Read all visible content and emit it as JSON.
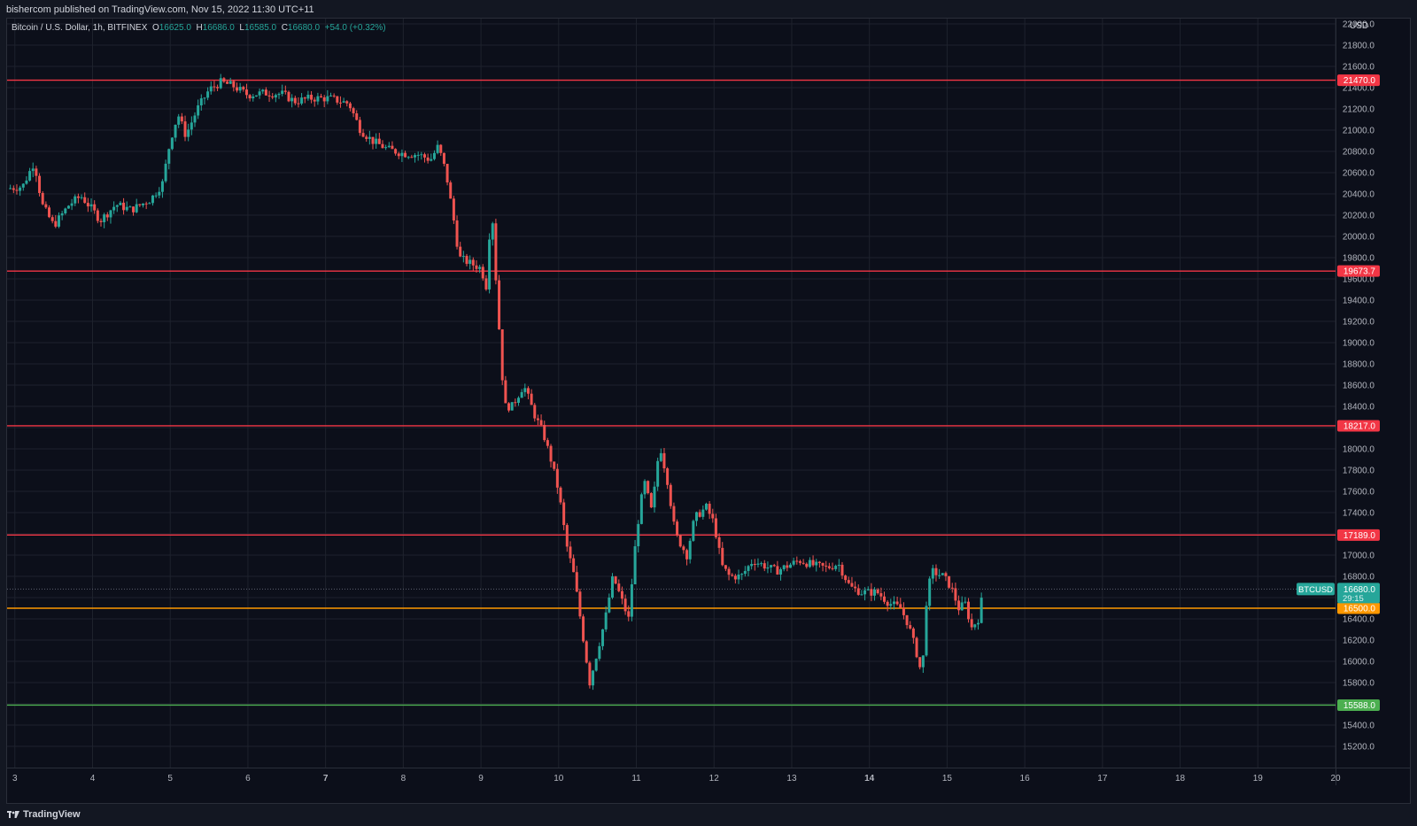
{
  "header": {
    "published_by": "bishercom published on TradingView.com, Nov 15, 2022 11:30 UTC+11"
  },
  "legend": {
    "symbol": "Bitcoin / U.S. Dollar, 1h, BITFINEX",
    "open_label": "O",
    "open_value": "16625.0",
    "high_label": "H",
    "high_value": "16686.0",
    "low_label": "L",
    "low_value": "16585.0",
    "close_label": "C",
    "close_value": "16680.0",
    "change": "+54.0 (+0.32%)"
  },
  "footer": {
    "brand": "TradingView"
  },
  "colors": {
    "background": "#0c0f1a",
    "up": "#26a69a",
    "down": "#ef5350",
    "resistance": "#f23645",
    "support_orange": "#ff9800",
    "support_green": "#4caf50",
    "grid": "#1e222d"
  },
  "chart_data": {
    "type": "candlestick",
    "currency": "USD",
    "x_ticks": [
      "3",
      "4",
      "5",
      "6",
      "7",
      "8",
      "9",
      "10",
      "11",
      "12",
      "13",
      "14",
      "15",
      "16",
      "17",
      "18",
      "19",
      "20"
    ],
    "bold_x_ticks": [
      "7",
      "14"
    ],
    "y_ticks": [
      "22000.0",
      "21800.0",
      "21600.0",
      "21400.0",
      "21200.0",
      "21000.0",
      "20800.0",
      "20600.0",
      "20400.0",
      "20200.0",
      "20000.0",
      "19800.0",
      "19600.0",
      "19400.0",
      "19200.0",
      "19000.0",
      "18800.0",
      "18600.0",
      "18400.0",
      "18200.0",
      "18000.0",
      "17800.0",
      "17600.0",
      "17400.0",
      "17200.0",
      "17000.0",
      "16800.0",
      "16600.0",
      "16400.0",
      "16200.0",
      "16000.0",
      "15800.0",
      "15600.0",
      "15400.0",
      "15200.0"
    ],
    "ylim": [
      15000,
      22050
    ],
    "xlim": [
      2.9,
      20.0
    ],
    "horizontal_lines": [
      {
        "value": 21470.0,
        "label": "21470.0",
        "color": "#f23645"
      },
      {
        "value": 19673.7,
        "label": "19673.7",
        "color": "#f23645"
      },
      {
        "value": 18217.0,
        "label": "18217.0",
        "color": "#f23645"
      },
      {
        "value": 17189.0,
        "label": "17189.0",
        "color": "#f23645"
      },
      {
        "value": 16500.0,
        "label": "16500.0",
        "color": "#ff9800"
      },
      {
        "value": 15588.0,
        "label": "15588.0",
        "color": "#4caf50"
      }
    ],
    "last_price": {
      "symbol": "BTCUSD",
      "value": "16680.0",
      "countdown": "29:15",
      "numeric": 16680
    },
    "price_path": [
      [
        2.9,
        20450
      ],
      [
        3.1,
        20470
      ],
      [
        3.25,
        20700
      ],
      [
        3.35,
        20300
      ],
      [
        3.5,
        20100
      ],
      [
        3.7,
        20300
      ],
      [
        3.85,
        20380
      ],
      [
        4.0,
        20250
      ],
      [
        4.1,
        20150
      ],
      [
        4.3,
        20300
      ],
      [
        4.5,
        20250
      ],
      [
        4.75,
        20350
      ],
      [
        4.9,
        20500
      ],
      [
        5.0,
        20900
      ],
      [
        5.1,
        21150
      ],
      [
        5.2,
        20950
      ],
      [
        5.35,
        21200
      ],
      [
        5.5,
        21380
      ],
      [
        5.65,
        21450
      ],
      [
        5.8,
        21420
      ],
      [
        6.0,
        21330
      ],
      [
        6.2,
        21350
      ],
      [
        6.45,
        21340
      ],
      [
        6.6,
        21270
      ],
      [
        6.8,
        21300
      ],
      [
        7.05,
        21300
      ],
      [
        7.3,
        21250
      ],
      [
        7.45,
        21000
      ],
      [
        7.6,
        20900
      ],
      [
        7.8,
        20820
      ],
      [
        8.0,
        20780
      ],
      [
        8.2,
        20770
      ],
      [
        8.35,
        20720
      ],
      [
        8.45,
        20850
      ],
      [
        8.55,
        20600
      ],
      [
        8.65,
        20150
      ],
      [
        8.72,
        19800
      ],
      [
        8.85,
        19750
      ],
      [
        9.0,
        19700
      ],
      [
        9.08,
        19500
      ],
      [
        9.13,
        20400
      ],
      [
        9.2,
        19500
      ],
      [
        9.3,
        18400
      ],
      [
        9.4,
        18400
      ],
      [
        9.55,
        18600
      ],
      [
        9.7,
        18300
      ],
      [
        9.8,
        18150
      ],
      [
        9.9,
        17900
      ],
      [
        10.0,
        17600
      ],
      [
        10.1,
        17100
      ],
      [
        10.2,
        16800
      ],
      [
        10.3,
        16300
      ],
      [
        10.4,
        15800
      ],
      [
        10.5,
        16100
      ],
      [
        10.6,
        16400
      ],
      [
        10.7,
        16800
      ],
      [
        10.8,
        16600
      ],
      [
        10.9,
        16400
      ],
      [
        11.0,
        17200
      ],
      [
        11.1,
        17700
      ],
      [
        11.2,
        17400
      ],
      [
        11.3,
        18050
      ],
      [
        11.4,
        17700
      ],
      [
        11.5,
        17200
      ],
      [
        11.65,
        17000
      ],
      [
        11.75,
        17350
      ],
      [
        11.9,
        17450
      ],
      [
        12.0,
        17300
      ],
      [
        12.1,
        16900
      ],
      [
        12.2,
        16800
      ],
      [
        12.35,
        16800
      ],
      [
        12.5,
        16950
      ],
      [
        12.65,
        16900
      ],
      [
        12.8,
        16850
      ],
      [
        12.95,
        16900
      ],
      [
        13.1,
        16950
      ],
      [
        13.3,
        16900
      ],
      [
        13.45,
        16880
      ],
      [
        13.6,
        16920
      ],
      [
        13.75,
        16700
      ],
      [
        13.9,
        16650
      ],
      [
        14.1,
        16650
      ],
      [
        14.25,
        16550
      ],
      [
        14.4,
        16500
      ],
      [
        14.5,
        16350
      ],
      [
        14.6,
        16100
      ],
      [
        14.68,
        15850
      ],
      [
        14.72,
        16500
      ],
      [
        14.8,
        16850
      ],
      [
        14.95,
        16800
      ],
      [
        15.05,
        16700
      ],
      [
        15.15,
        16500
      ],
      [
        15.25,
        16550
      ],
      [
        15.3,
        16300
      ],
      [
        15.4,
        16400
      ],
      [
        15.47,
        16680
      ]
    ]
  }
}
